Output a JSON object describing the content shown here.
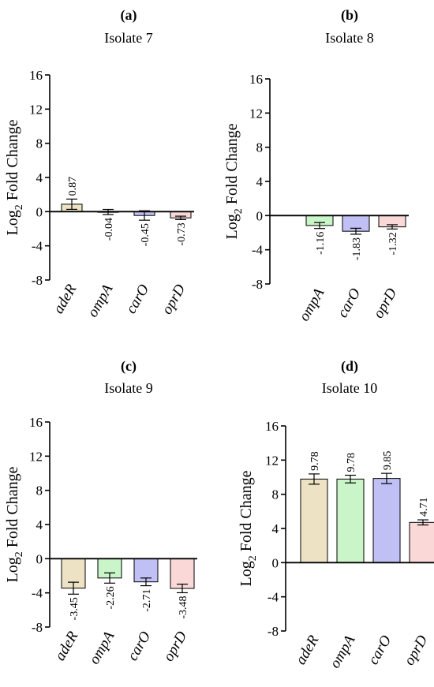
{
  "colors": {
    "adeR": "#ede3c4",
    "ompA": "#c9f5c9",
    "carO": "#c0c0f5",
    "oprD": "#fad8d8",
    "axis": "#000000"
  },
  "chart_data": [
    {
      "type": "bar",
      "letter": "(a)",
      "title": "Isolate 7",
      "ylabel": "Log",
      "ylabel_sub": "2",
      "ylabel_rest": " Fold Change",
      "ylim": [
        -8,
        16
      ],
      "yticks": [
        -8,
        -4,
        0,
        4,
        8,
        12,
        16
      ],
      "categories": [
        "adeR",
        "ompA",
        "carO",
        "oprD"
      ],
      "values": [
        0.87,
        -0.04,
        -0.45,
        -0.73
      ],
      "errors": [
        0.6,
        0.3,
        0.55,
        0.2
      ],
      "labels": [
        "0.87",
        "-0.04",
        "-0.45",
        "-0.73"
      ]
    },
    {
      "type": "bar",
      "letter": "(b)",
      "title": "Isolate 8",
      "ylabel": "Log",
      "ylabel_sub": "2",
      "ylabel_rest": " Fold Change",
      "ylim": [
        -8,
        16
      ],
      "yticks": [
        -8,
        -4,
        0,
        4,
        8,
        12,
        16
      ],
      "categories": [
        "ompA",
        "carO",
        "oprD"
      ],
      "values": [
        -1.16,
        -1.83,
        -1.32
      ],
      "errors": [
        0.35,
        0.35,
        0.25
      ],
      "labels": [
        "-1.16",
        "-1.83",
        "-1.32"
      ]
    },
    {
      "type": "bar",
      "letter": "(c)",
      "title": "Isolate 9",
      "ylabel": "Log",
      "ylabel_sub": "2",
      "ylabel_rest": " Fold Change",
      "ylim": [
        -8,
        16
      ],
      "yticks": [
        -8,
        -4,
        0,
        4,
        8,
        12,
        16
      ],
      "categories": [
        "adeR",
        "ompA",
        "carO",
        "oprD"
      ],
      "values": [
        -3.45,
        -2.26,
        -2.71,
        -3.48
      ],
      "errors": [
        0.7,
        0.6,
        0.45,
        0.5
      ],
      "labels": [
        "-3.45",
        "-2.26",
        "-2.71",
        "-3.48"
      ]
    },
    {
      "type": "bar",
      "letter": "(d)",
      "title": "Isolate 10",
      "ylabel": "Log",
      "ylabel_sub": "2",
      "ylabel_rest": " Fold Change",
      "ylim": [
        -8,
        16
      ],
      "yticks": [
        -8,
        -4,
        0,
        4,
        8,
        12,
        16
      ],
      "categories": [
        "adeR",
        "ompA",
        "carO",
        "oprD"
      ],
      "values": [
        9.78,
        9.78,
        9.85,
        4.71
      ],
      "errors": [
        0.6,
        0.45,
        0.6,
        0.3
      ],
      "labels": [
        "9.78",
        "9.78",
        "9.85",
        "4.71"
      ]
    }
  ]
}
